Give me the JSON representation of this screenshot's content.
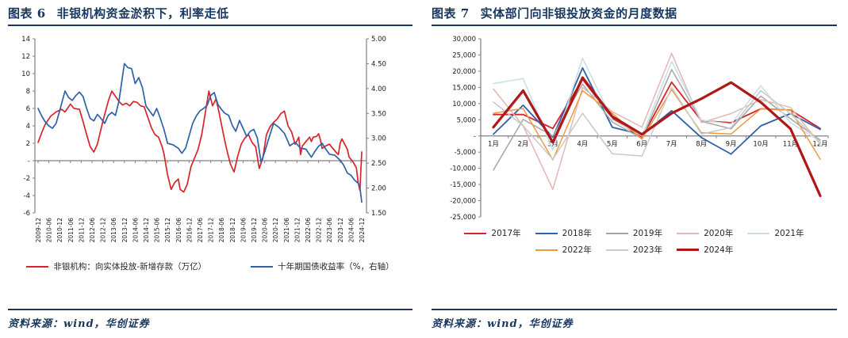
{
  "figure6": {
    "label": "图表 6",
    "title": "非银机构资金淤积下，利率走低",
    "source": "资料来源：wind，华创证券"
  },
  "figure7": {
    "label": "图表 7",
    "title": "实体部门向非银投放资金的月度数据",
    "source": "资料来源：wind，华创证券"
  },
  "colors": {
    "accent_navy": "#17375E",
    "axis_line": "#808080",
    "tick_text": "#1a1a1a"
  },
  "chart_data": [
    {
      "type": "line",
      "title": "非银机构资金淤积下，利率走低",
      "grid": false,
      "legend_position": "bottom",
      "x_unit": "months since 2009-12",
      "x_range": [
        0,
        180
      ],
      "x_tick_every_months": 6,
      "x_tick_labels": [
        "2009-12",
        "2010-06",
        "2010-12",
        "2011-06",
        "2011-12",
        "2012-06",
        "2012-12",
        "2013-06",
        "2013-12",
        "2014-06",
        "2014-12",
        "2015-06",
        "2015-12",
        "2016-06",
        "2016-12",
        "2017-06",
        "2017-12",
        "2018-06",
        "2018-12",
        "2019-06",
        "2019-12",
        "2020-06",
        "2020-12",
        "2021-06",
        "2021-12",
        "2022-06",
        "2022-12",
        "2023-06",
        "2023-12",
        "2024-06",
        "2024-12"
      ],
      "left_axis": {
        "range": [
          -6,
          14
        ],
        "tick_values": [
          14,
          12,
          10,
          8,
          6,
          4,
          2,
          0,
          -2,
          -4,
          -6
        ],
        "tick_labels": [
          "14",
          "12",
          "10",
          "8",
          "6",
          "4",
          "2",
          "-",
          "-2",
          "-4",
          "-6"
        ]
      },
      "right_axis": {
        "range": [
          1.5,
          5.0
        ],
        "tick_values": [
          5.0,
          4.5,
          4.0,
          3.5,
          3.0,
          2.5,
          2.0,
          1.5
        ],
        "tick_labels": [
          "5.00",
          "4.50",
          "4.00",
          "3.50",
          "3.00",
          "2.50",
          "2.00",
          "1.50"
        ]
      },
      "series": [
        {
          "name": "非银机构：向实体投放-新增存款（万亿）",
          "axis": "left",
          "color": "#D9242B",
          "width": 1.7,
          "points": [
            [
              0,
              2.1
            ],
            [
              2,
              3.2
            ],
            [
              4,
              4.2
            ],
            [
              7,
              5.1
            ],
            [
              10,
              5.6
            ],
            [
              13,
              5.9
            ],
            [
              15,
              5.6
            ],
            [
              18,
              6.5
            ],
            [
              20,
              6.0
            ],
            [
              23,
              5.9
            ],
            [
              25,
              4.5
            ],
            [
              27,
              3.0
            ],
            [
              29,
              1.6
            ],
            [
              31,
              1.0
            ],
            [
              33,
              1.9
            ],
            [
              36,
              4.5
            ],
            [
              39,
              6.8
            ],
            [
              41,
              8.0
            ],
            [
              43,
              7.4
            ],
            [
              45,
              6.8
            ],
            [
              47,
              6.4
            ],
            [
              49,
              6.6
            ],
            [
              51,
              6.3
            ],
            [
              53,
              6.8
            ],
            [
              55,
              6.7
            ],
            [
              57,
              6.3
            ],
            [
              59,
              6.2
            ],
            [
              61,
              5.0
            ],
            [
              63,
              3.8
            ],
            [
              65,
              3.0
            ],
            [
              67,
              2.7
            ],
            [
              69,
              1.6
            ],
            [
              70,
              0.8
            ],
            [
              71,
              -0.4
            ],
            [
              72,
              -1.6
            ],
            [
              74,
              -3.3
            ],
            [
              76,
              -2.5
            ],
            [
              78,
              -2.1
            ],
            [
              79,
              -3.3
            ],
            [
              81,
              -3.6
            ],
            [
              83,
              -2.7
            ],
            [
              85,
              -0.7
            ],
            [
              87,
              0.3
            ],
            [
              89,
              1.3
            ],
            [
              91,
              3.0
            ],
            [
              93,
              5.5
            ],
            [
              95,
              8.0
            ],
            [
              97,
              6.3
            ],
            [
              99,
              7.1
            ],
            [
              101,
              5.2
            ],
            [
              103,
              3.1
            ],
            [
              105,
              1.2
            ],
            [
              107,
              -0.4
            ],
            [
              109,
              -1.3
            ],
            [
              111,
              0.5
            ],
            [
              113,
              1.9
            ],
            [
              115,
              2.6
            ],
            [
              117,
              3.0
            ],
            [
              119,
              2.1
            ],
            [
              121,
              1.6
            ],
            [
              123,
              -0.9
            ],
            [
              125,
              0.3
            ],
            [
              127,
              3.0
            ],
            [
              129,
              3.9
            ],
            [
              131,
              4.4
            ],
            [
              133,
              4.8
            ],
            [
              135,
              5.4
            ],
            [
              137,
              5.7
            ],
            [
              139,
              4.0
            ],
            [
              141,
              3.3
            ],
            [
              143,
              1.9
            ],
            [
              145,
              2.7
            ],
            [
              146,
              0.7
            ],
            [
              147,
              1.7
            ],
            [
              149,
              2.2
            ],
            [
              151,
              2.7
            ],
            [
              152,
              2.2
            ],
            [
              153,
              2.7
            ],
            [
              155,
              2.8
            ],
            [
              156,
              3.1
            ],
            [
              157,
              2.4
            ],
            [
              158,
              1.4
            ],
            [
              160,
              1.7
            ],
            [
              162,
              1.9
            ],
            [
              164,
              1.4
            ],
            [
              166,
              0.9
            ],
            [
              167,
              0.7
            ],
            [
              168,
              2.0
            ],
            [
              169,
              2.5
            ],
            [
              171,
              1.7
            ],
            [
              172,
              1.3
            ],
            [
              173,
              0.4
            ],
            [
              175,
              -0.1
            ],
            [
              177,
              -0.8
            ],
            [
              178,
              -2.5
            ],
            [
              179,
              -3.4
            ],
            [
              180,
              1.0
            ]
          ]
        },
        {
          "name": "十年期国债收益率（%，右轴）",
          "axis": "right",
          "color": "#2E61A8",
          "width": 1.7,
          "points": [
            [
              0,
              3.6
            ],
            [
              2,
              3.45
            ],
            [
              4,
              3.33
            ],
            [
              6,
              3.25
            ],
            [
              8,
              3.2
            ],
            [
              10,
              3.3
            ],
            [
              12,
              3.55
            ],
            [
              14,
              3.82
            ],
            [
              15,
              3.95
            ],
            [
              17,
              3.82
            ],
            [
              19,
              3.76
            ],
            [
              21,
              3.86
            ],
            [
              23,
              3.93
            ],
            [
              25,
              3.84
            ],
            [
              27,
              3.6
            ],
            [
              29,
              3.4
            ],
            [
              31,
              3.35
            ],
            [
              33,
              3.48
            ],
            [
              35,
              3.4
            ],
            [
              37,
              3.3
            ],
            [
              39,
              3.46
            ],
            [
              41,
              3.52
            ],
            [
              43,
              3.46
            ],
            [
              45,
              3.75
            ],
            [
              47,
              4.25
            ],
            [
              48,
              4.5
            ],
            [
              50,
              4.42
            ],
            [
              52,
              4.4
            ],
            [
              54,
              4.1
            ],
            [
              56,
              4.22
            ],
            [
              58,
              4.02
            ],
            [
              60,
              3.65
            ],
            [
              62,
              3.55
            ],
            [
              64,
              3.45
            ],
            [
              66,
              3.6
            ],
            [
              68,
              3.4
            ],
            [
              70,
              3.18
            ],
            [
              72,
              2.9
            ],
            [
              75,
              2.87
            ],
            [
              78,
              2.8
            ],
            [
              80,
              2.7
            ],
            [
              82,
              2.8
            ],
            [
              84,
              3.05
            ],
            [
              86,
              3.3
            ],
            [
              88,
              3.45
            ],
            [
              90,
              3.55
            ],
            [
              92,
              3.6
            ],
            [
              94,
              3.66
            ],
            [
              96,
              3.86
            ],
            [
              98,
              3.92
            ],
            [
              100,
              3.68
            ],
            [
              102,
              3.58
            ],
            [
              104,
              3.5
            ],
            [
              106,
              3.46
            ],
            [
              108,
              3.26
            ],
            [
              110,
              3.14
            ],
            [
              112,
              3.36
            ],
            [
              114,
              3.2
            ],
            [
              116,
              3.04
            ],
            [
              118,
              3.14
            ],
            [
              120,
              3.18
            ],
            [
              122,
              3.0
            ],
            [
              124,
              2.52
            ],
            [
              126,
              2.72
            ],
            [
              128,
              2.96
            ],
            [
              131,
              3.3
            ],
            [
              134,
              3.22
            ],
            [
              137,
              3.1
            ],
            [
              140,
              2.85
            ],
            [
              143,
              2.92
            ],
            [
              146,
              2.8
            ],
            [
              149,
              2.78
            ],
            [
              152,
              2.62
            ],
            [
              154,
              2.74
            ],
            [
              156,
              2.84
            ],
            [
              158,
              2.9
            ],
            [
              160,
              2.78
            ],
            [
              162,
              2.68
            ],
            [
              165,
              2.66
            ],
            [
              168,
              2.56
            ],
            [
              170,
              2.46
            ],
            [
              172,
              2.3
            ],
            [
              174,
              2.26
            ],
            [
              176,
              2.16
            ],
            [
              178,
              2.1
            ],
            [
              179,
              2.02
            ],
            [
              180,
              1.72
            ]
          ]
        }
      ]
    },
    {
      "type": "line",
      "title": "实体部门向非银投放资金的月度数据",
      "grid": false,
      "legend_position": "bottom",
      "categories": [
        "1月",
        "2月",
        "3月",
        "4月",
        "5月",
        "6月",
        "7月",
        "8月",
        "9月",
        "10月",
        "11月",
        "12月"
      ],
      "ylim": [
        -25000,
        30000
      ],
      "y_tick_values": [
        30000,
        25000,
        20000,
        15000,
        10000,
        5000,
        0,
        -5000,
        -10000,
        -15000,
        -20000,
        -25000
      ],
      "y_tick_labels": [
        "30,000",
        "25,000",
        "20,000",
        "15,000",
        "10,000",
        "5,000",
        "-",
        "-5,000",
        "-10,000",
        "-15,000",
        "-20,000",
        "-25,000"
      ],
      "series": [
        {
          "name": "2017年",
          "color": "#D9242B",
          "width": 1.8,
          "values": [
            6600,
            6600,
            2300,
            17500,
            5500,
            -500,
            16600,
            4700,
            4100,
            8400,
            8000,
            2300
          ]
        },
        {
          "name": "2018年",
          "color": "#2E61A8",
          "width": 1.8,
          "values": [
            550,
            9500,
            -400,
            21000,
            2700,
            400,
            7800,
            -500,
            -5600,
            3100,
            6900,
            2000
          ]
        },
        {
          "name": "2019年",
          "color": "#A6A6A6",
          "width": 1.5,
          "values": [
            -10500,
            5100,
            0,
            16000,
            4300,
            -800,
            20500,
            4500,
            2200,
            12300,
            5300,
            -1300
          ]
        },
        {
          "name": "2020年",
          "color": "#E3B7B2",
          "width": 1.5,
          "values": [
            14500,
            3100,
            -16500,
            15000,
            7500,
            2700,
            25500,
            4100,
            6900,
            11200,
            8800,
            -2500
          ]
        },
        {
          "name": "2021年",
          "color": "#C9DFE6",
          "width": 1.5,
          "values": [
            16200,
            17700,
            -4300,
            24000,
            5000,
            0,
            23000,
            4900,
            3700,
            15500,
            4100,
            -1700
          ]
        },
        {
          "name": "2022年",
          "color": "#EC9A3E",
          "width": 1.5,
          "values": [
            7000,
            8500,
            -7400,
            14000,
            7000,
            -1000,
            14300,
            1000,
            600,
            8400,
            8000,
            -7200
          ]
        },
        {
          "name": "2023年",
          "color": "#C9C9C9",
          "width": 1.5,
          "values": [
            10500,
            3100,
            -7200,
            7000,
            -5500,
            -6200,
            15000,
            600,
            2600,
            14000,
            6900,
            -2100
          ]
        },
        {
          "name": "2024年",
          "color": "#AE1817",
          "width": 3.2,
          "values": [
            2700,
            14000,
            -2000,
            18000,
            6000,
            500,
            7000,
            11500,
            16500,
            10400,
            2200,
            -18500
          ]
        }
      ]
    }
  ]
}
